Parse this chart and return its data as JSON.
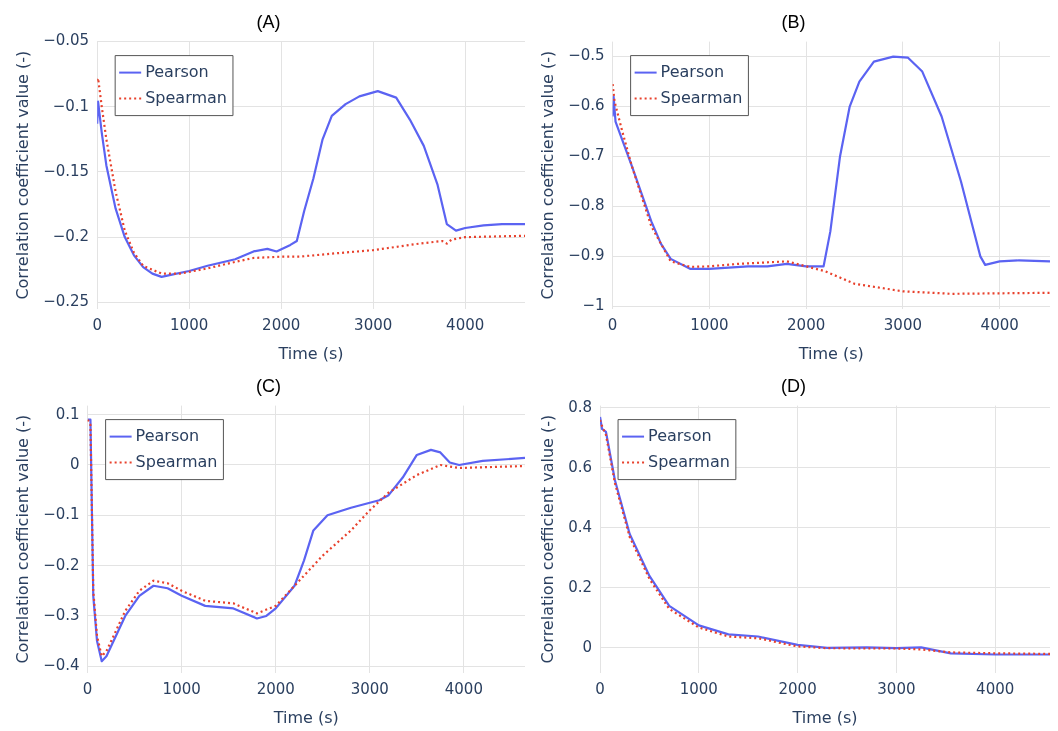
{
  "chart_data": [
    {
      "type": "line",
      "title": "(A)",
      "xlabel": "Time (s)",
      "ylabel": "Correlation coefficient value (-)",
      "xlim": [
        0,
        4650
      ],
      "ylim": [
        -0.255,
        -0.05
      ],
      "xticks": [
        0,
        1000,
        2000,
        3000,
        4000
      ],
      "yticks": [
        {
          "value": -0.25,
          "label": "−0.25"
        },
        {
          "value": -0.2,
          "label": "−0.2"
        },
        {
          "value": -0.15,
          "label": "−0.15"
        },
        {
          "value": -0.1,
          "label": "−0.1"
        },
        {
          "value": -0.05,
          "label": "−0.05"
        }
      ],
      "grid": true,
      "legend": "top left",
      "marker": "none",
      "series": [
        {
          "name": "Pearson",
          "color": "#5b63f2",
          "line_style": "solid",
          "x": [
            0,
            10,
            50,
            100,
            200,
            300,
            400,
            500,
            600,
            700,
            800,
            1000,
            1200,
            1500,
            1700,
            1850,
            1950,
            2100,
            2170,
            2250,
            2350,
            2450,
            2550,
            2700,
            2850,
            3050,
            3250,
            3400,
            3550,
            3700,
            3800,
            3900,
            4000,
            4200,
            4400,
            4650
          ],
          "values": [
            -0.113,
            -0.096,
            -0.12,
            -0.145,
            -0.178,
            -0.2,
            -0.214,
            -0.223,
            -0.228,
            -0.2305,
            -0.229,
            -0.226,
            -0.222,
            -0.217,
            -0.211,
            -0.209,
            -0.211,
            -0.206,
            -0.203,
            -0.18,
            -0.155,
            -0.125,
            -0.107,
            -0.098,
            -0.092,
            -0.088,
            -0.093,
            -0.11,
            -0.13,
            -0.16,
            -0.19,
            -0.195,
            -0.193,
            -0.191,
            -0.19,
            -0.19
          ]
        },
        {
          "name": "Spearman",
          "color": "#e8412c",
          "line_style": "dotted",
          "x": [
            0,
            10,
            50,
            100,
            200,
            300,
            400,
            500,
            700,
            900,
            1200,
            1500,
            1700,
            2000,
            2200,
            2500,
            3000,
            3500,
            3750,
            3800,
            3850,
            4000,
            4650
          ],
          "values": [
            -0.08,
            -0.078,
            -0.1,
            -0.125,
            -0.165,
            -0.195,
            -0.212,
            -0.222,
            -0.228,
            -0.228,
            -0.224,
            -0.219,
            -0.216,
            -0.215,
            -0.215,
            -0.213,
            -0.21,
            -0.205,
            -0.203,
            -0.205,
            -0.202,
            -0.2,
            -0.199
          ]
        }
      ]
    },
    {
      "type": "line",
      "title": "(B)",
      "xlabel": "Time (s)",
      "ylabel": "Correlation coefficient value (-)",
      "xlim": [
        0,
        4520
      ],
      "ylim": [
        -1.005,
        -0.47
      ],
      "xticks": [
        0,
        1000,
        2000,
        3000,
        4000
      ],
      "yticks": [
        {
          "value": -1,
          "label": "−1"
        },
        {
          "value": -0.9,
          "label": "−0.9"
        },
        {
          "value": -0.8,
          "label": "−0.8"
        },
        {
          "value": -0.7,
          "label": "−0.7"
        },
        {
          "value": -0.6,
          "label": "−0.6"
        },
        {
          "value": -0.5,
          "label": "−0.5"
        }
      ],
      "grid": true,
      "legend": "top left",
      "marker": "none",
      "series": [
        {
          "name": "Pearson",
          "color": "#5b63f2",
          "line_style": "solid",
          "x": [
            0,
            10,
            30,
            200,
            400,
            500,
            600,
            800,
            1000,
            1400,
            1600,
            1800,
            2000,
            2180,
            2250,
            2350,
            2450,
            2550,
            2700,
            2900,
            3050,
            3200,
            3400,
            3600,
            3800,
            3850,
            4000,
            4200,
            4520
          ],
          "values": [
            -0.62,
            -0.58,
            -0.63,
            -0.72,
            -0.83,
            -0.875,
            -0.905,
            -0.925,
            -0.925,
            -0.92,
            -0.92,
            -0.915,
            -0.92,
            -0.92,
            -0.85,
            -0.7,
            -0.6,
            -0.55,
            -0.51,
            -0.5,
            -0.502,
            -0.53,
            -0.62,
            -0.75,
            -0.9,
            -0.917,
            -0.91,
            -0.908,
            -0.91
          ]
        },
        {
          "name": "Spearman",
          "color": "#e8412c",
          "line_style": "dotted",
          "x": [
            0,
            20,
            100,
            200,
            400,
            600,
            800,
            1000,
            1300,
            1800,
            2000,
            2200,
            2500,
            3000,
            3500,
            4000,
            4520
          ],
          "values": [
            -0.555,
            -0.59,
            -0.65,
            -0.72,
            -0.84,
            -0.91,
            -0.921,
            -0.92,
            -0.915,
            -0.91,
            -0.92,
            -0.93,
            -0.955,
            -0.97,
            -0.975,
            -0.974,
            -0.973
          ]
        }
      ]
    },
    {
      "type": "line",
      "title": "(C)",
      "xlabel": "Time (s)",
      "ylabel": "Correlation coefficient value (-)",
      "xlim": [
        0,
        4650
      ],
      "ylim": [
        -0.413,
        0.118
      ],
      "xticks": [
        0,
        1000,
        2000,
        3000,
        4000
      ],
      "yticks": [
        {
          "value": -0.4,
          "label": "−0.4"
        },
        {
          "value": -0.3,
          "label": "−0.3"
        },
        {
          "value": -0.2,
          "label": "−0.2"
        },
        {
          "value": -0.1,
          "label": "−0.1"
        },
        0,
        0.1
      ],
      "grid": true,
      "legend": "top left",
      "marker": "none",
      "series": [
        {
          "name": "Pearson",
          "color": "#5b63f2",
          "line_style": "solid",
          "x": [
            0,
            30,
            60,
            100,
            150,
            200,
            400,
            550,
            700,
            850,
            1000,
            1250,
            1550,
            1800,
            1900,
            2000,
            2200,
            2300,
            2400,
            2550,
            2800,
            3100,
            3200,
            3350,
            3500,
            3650,
            3750,
            3850,
            3950,
            4200,
            4650
          ],
          "values": [
            0.09,
            0.09,
            -0.26,
            -0.35,
            -0.39,
            -0.38,
            -0.3,
            -0.26,
            -0.24,
            -0.245,
            -0.26,
            -0.28,
            -0.285,
            -0.305,
            -0.3,
            -0.285,
            -0.24,
            -0.19,
            -0.13,
            -0.1,
            -0.085,
            -0.07,
            -0.06,
            -0.025,
            0.02,
            0.03,
            0.025,
            0.005,
            0,
            0.008,
            0.014
          ]
        },
        {
          "name": "Spearman",
          "color": "#e8412c",
          "line_style": "dotted",
          "x": [
            0,
            30,
            60,
            100,
            150,
            200,
            400,
            550,
            700,
            850,
            1000,
            1250,
            1550,
            1800,
            2000,
            2200,
            2500,
            2800,
            3000,
            3200,
            3500,
            3750,
            3950,
            4650
          ],
          "values": [
            0.09,
            0.08,
            -0.25,
            -0.34,
            -0.38,
            -0.37,
            -0.29,
            -0.25,
            -0.23,
            -0.235,
            -0.25,
            -0.27,
            -0.275,
            -0.295,
            -0.28,
            -0.24,
            -0.18,
            -0.13,
            -0.09,
            -0.055,
            -0.02,
            0,
            -0.006,
            -0.002
          ]
        }
      ]
    },
    {
      "type": "line",
      "title": "(D)",
      "xlabel": "Time (s)",
      "ylabel": "Correlation coefficient value (-)",
      "xlim": [
        0,
        4555
      ],
      "ylim": [
        -0.083,
        0.808
      ],
      "xticks": [
        0,
        1000,
        2000,
        3000,
        4000
      ],
      "yticks": [
        0,
        0.2,
        0.4,
        0.6,
        0.8
      ],
      "grid": true,
      "legend": "top left",
      "marker": "none",
      "series": [
        {
          "name": "Pearson",
          "color": "#5b63f2",
          "line_style": "solid",
          "x": [
            0,
            20,
            60,
            150,
            300,
            500,
            700,
            1000,
            1300,
            1600,
            2000,
            2300,
            2700,
            3000,
            3250,
            3550,
            4000,
            4555
          ],
          "values": [
            0.77,
            0.73,
            0.72,
            0.56,
            0.38,
            0.24,
            0.14,
            0.075,
            0.045,
            0.038,
            0.01,
            0,
            0.002,
            -0.001,
            0.002,
            -0.018,
            -0.022,
            -0.022
          ]
        },
        {
          "name": "Spearman",
          "color": "#e8412c",
          "line_style": "dotted",
          "x": [
            0,
            20,
            60,
            150,
            300,
            500,
            700,
            1000,
            1300,
            1600,
            2000,
            2300,
            3000,
            3250,
            3550,
            4000,
            4555
          ],
          "values": [
            0.76,
            0.74,
            0.71,
            0.55,
            0.37,
            0.23,
            0.13,
            0.068,
            0.038,
            0.032,
            0.005,
            -0.001,
            -0.002,
            -0.005,
            -0.015,
            -0.018,
            -0.02
          ]
        }
      ]
    }
  ]
}
